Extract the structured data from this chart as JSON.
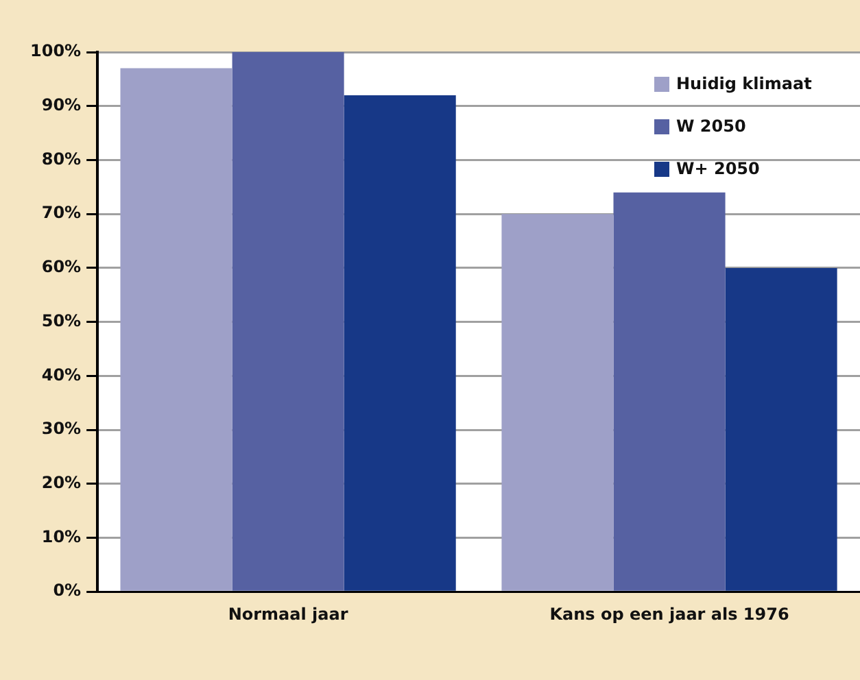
{
  "chart_data": {
    "type": "bar",
    "categories": [
      "Normaal jaar",
      "Kans op een jaar als 1976"
    ],
    "series": [
      {
        "name": "Huidig klimaat",
        "color": "#9ea0c8",
        "values": [
          97,
          70
        ]
      },
      {
        "name": "W 2050",
        "color": "#5661a2",
        "values": [
          100,
          74
        ]
      },
      {
        "name": "W+ 2050",
        "color": "#173887",
        "values": [
          92,
          60
        ]
      }
    ],
    "ylim": [
      0,
      100
    ],
    "yticks": [
      {
        "value": 0,
        "label": "0%"
      },
      {
        "value": 10,
        "label": "10%"
      },
      {
        "value": 20,
        "label": "20%"
      },
      {
        "value": 30,
        "label": "30%"
      },
      {
        "value": 40,
        "label": "40%"
      },
      {
        "value": 50,
        "label": "50%"
      },
      {
        "value": 60,
        "label": "60%"
      },
      {
        "value": 70,
        "label": "70%"
      },
      {
        "value": 80,
        "label": "80%"
      },
      {
        "value": 90,
        "label": "90%"
      },
      {
        "value": 100,
        "label": "100%"
      }
    ],
    "grid": "y",
    "legend": "top right"
  }
}
